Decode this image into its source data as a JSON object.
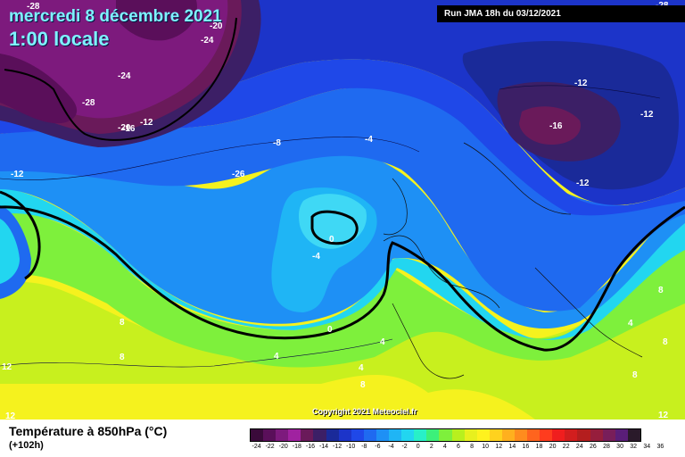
{
  "header": {
    "date": "mercredi 8 décembre 2021",
    "time": "1:00 locale",
    "run": "Run JMA 18h du 03/12/2021"
  },
  "copyright": "Copyright 2021 Meteociel.fr",
  "legend": {
    "title": "Température à 850hPa (°C)",
    "subtitle": "(+102h)",
    "scale": [
      {
        "label": "-24",
        "color": "#3a0a3a"
      },
      {
        "label": "-22",
        "color": "#5a0f5a"
      },
      {
        "label": "-20",
        "color": "#7d1a7d"
      },
      {
        "label": "-18",
        "color": "#a022a0"
      },
      {
        "label": "-16",
        "color": "#6a1a5a"
      },
      {
        "label": "-14",
        "color": "#3c1f66"
      },
      {
        "label": "-12",
        "color": "#1a2a99"
      },
      {
        "label": "-10",
        "color": "#1c34c9"
      },
      {
        "label": "-8",
        "color": "#1f48e8"
      },
      {
        "label": "-6",
        "color": "#1f6af0"
      },
      {
        "label": "-4",
        "color": "#1e90f5"
      },
      {
        "label": "-2",
        "color": "#1fb5f5"
      },
      {
        "label": "0",
        "color": "#22d6f0"
      },
      {
        "label": "2",
        "color": "#28f0c8"
      },
      {
        "label": "4",
        "color": "#3cf07a"
      },
      {
        "label": "6",
        "color": "#7ef03c"
      },
      {
        "label": "8",
        "color": "#b8f01e"
      },
      {
        "label": "10",
        "color": "#e8f01e"
      },
      {
        "label": "12",
        "color": "#fff21e"
      },
      {
        "label": "14",
        "color": "#ffd21e"
      },
      {
        "label": "16",
        "color": "#ffb01e"
      },
      {
        "label": "18",
        "color": "#ff8c1e"
      },
      {
        "label": "20",
        "color": "#ff641e"
      },
      {
        "label": "22",
        "color": "#ff3c1e"
      },
      {
        "label": "24",
        "color": "#f01e1e"
      },
      {
        "label": "26",
        "color": "#d21e1e"
      },
      {
        "label": "28",
        "color": "#b41e1e"
      },
      {
        "label": "30",
        "color": "#961e3c"
      },
      {
        "label": "32",
        "color": "#781e5a"
      },
      {
        "label": "34",
        "color": "#5a1e78"
      },
      {
        "label": "36",
        "color": "#2a1a2a"
      }
    ]
  },
  "isotherms": [
    {
      "id": "label-m28-top",
      "text": "-28"
    },
    {
      "id": "label-m24-top",
      "text": "-24"
    },
    {
      "id": "label-m20-top",
      "text": "-20"
    },
    {
      "id": "label-m24-greenland",
      "text": "-24"
    },
    {
      "id": "label-m28-greenland",
      "text": "-28"
    },
    {
      "id": "label-m20-greenland",
      "text": "-20"
    },
    {
      "id": "label-m16-greenland",
      "text": "-16"
    },
    {
      "id": "label-m12-greenland",
      "text": "-12"
    },
    {
      "id": "label-m26-greenland",
      "text": "-26"
    },
    {
      "id": "label-m12-west",
      "text": "-12"
    },
    {
      "id": "label-m8-atlantic",
      "text": "-8"
    },
    {
      "id": "label-m4-atlantic",
      "text": "-4"
    },
    {
      "id": "label-0-ireland",
      "text": "0"
    },
    {
      "id": "label-m4-ireland",
      "text": "-4"
    },
    {
      "id": "label-0-south",
      "text": "0"
    },
    {
      "id": "label-4-south",
      "text": "4"
    },
    {
      "id": "label-8-mid",
      "text": "8"
    },
    {
      "id": "label-8-left",
      "text": "8"
    },
    {
      "id": "label-12-left",
      "text": "12"
    },
    {
      "id": "label-12-bottom",
      "text": "12"
    },
    {
      "id": "label-m12-scand-top",
      "text": "-12"
    },
    {
      "id": "label-m16-scand",
      "text": "-16"
    },
    {
      "id": "label-m12-scand-east",
      "text": "-12"
    },
    {
      "id": "label-m12-scand-south",
      "text": "-12"
    },
    {
      "id": "label-4-iberia",
      "text": "4"
    },
    {
      "id": "label-4-iberia-b",
      "text": "4"
    },
    {
      "id": "label-8-iberia",
      "text": "8"
    },
    {
      "id": "label-4-balkans",
      "text": "4"
    },
    {
      "id": "label-8-east",
      "text": "8"
    },
    {
      "id": "label-8-east-b",
      "text": "8"
    },
    {
      "id": "label-8-bottom-right",
      "text": "8"
    },
    {
      "id": "label-12-bottom-right",
      "text": "12"
    },
    {
      "id": "label-m28-right",
      "text": "-28"
    }
  ]
}
